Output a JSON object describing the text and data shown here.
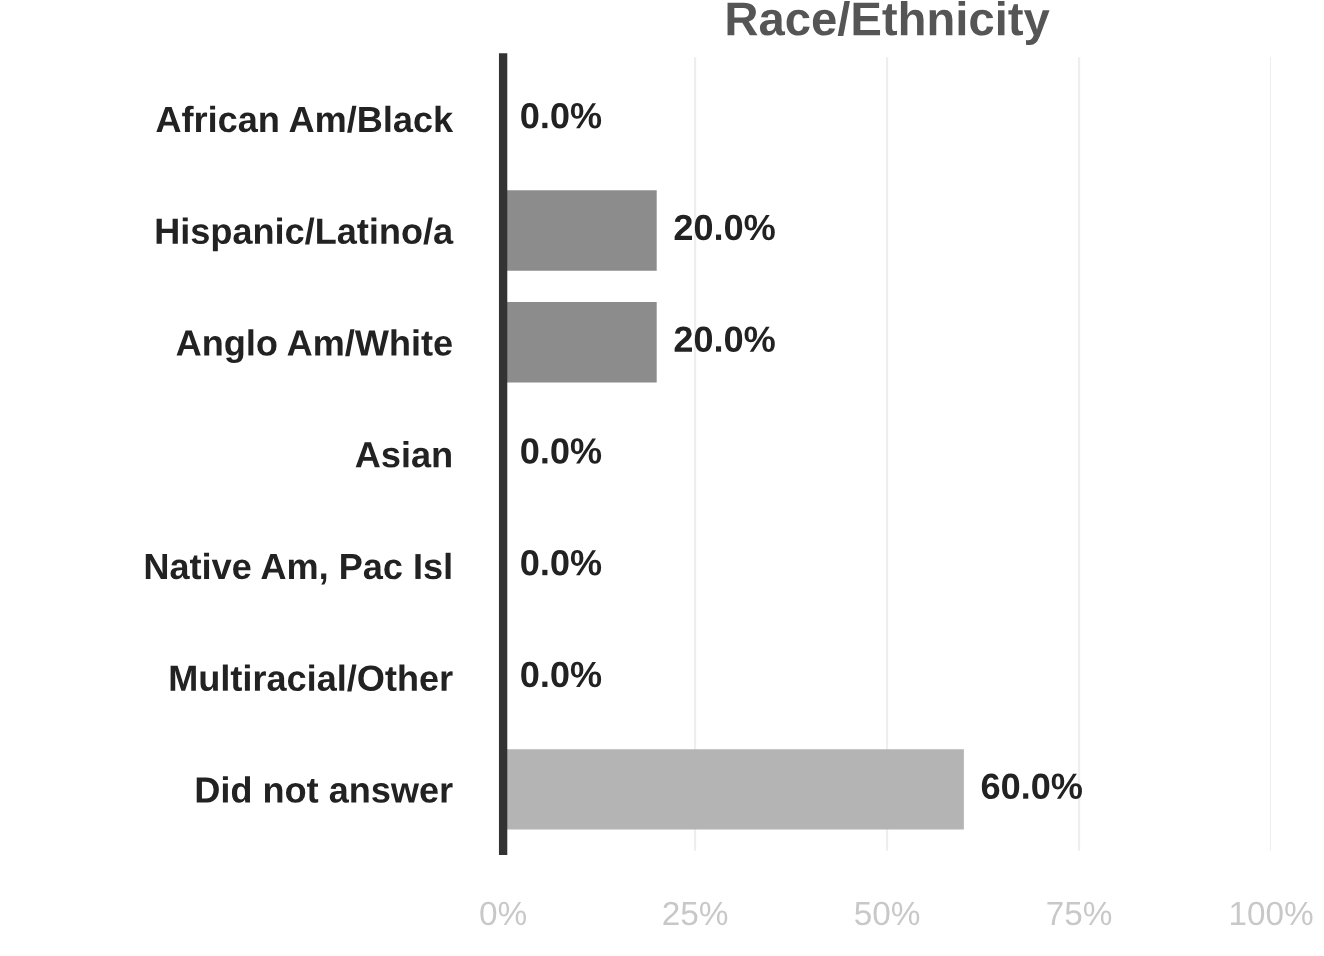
{
  "chart_data": {
    "type": "bar",
    "orientation": "horizontal",
    "title": "Race/Ethnicity",
    "categories": [
      "African Am/Black",
      "Hispanic/Latino/a",
      "Anglo Am/White",
      "Asian",
      "Native Am, Pac Isl",
      "Multiracial/Other",
      "Did not answer"
    ],
    "values": [
      0,
      20,
      20,
      0,
      0,
      0,
      60
    ],
    "colors": [
      "#8c8c8c",
      "#8c8c8c",
      "#8c8c8c",
      "#8c8c8c",
      "#8c8c8c",
      "#8c8c8c",
      "#b4b4b4"
    ],
    "value_labels": [
      "0.0%",
      "20.0%",
      "20.0%",
      "0.0%",
      "0.0%",
      "0.0%",
      "60.0%"
    ],
    "xlim": [
      0,
      100
    ],
    "xticks": [
      {
        "value": 0,
        "label": "0%"
      },
      {
        "value": 25,
        "label": "25%"
      },
      {
        "value": 50,
        "label": "50%"
      },
      {
        "value": 75,
        "label": "75%"
      },
      {
        "value": 100,
        "label": "100%"
      }
    ],
    "grid": "x"
  }
}
